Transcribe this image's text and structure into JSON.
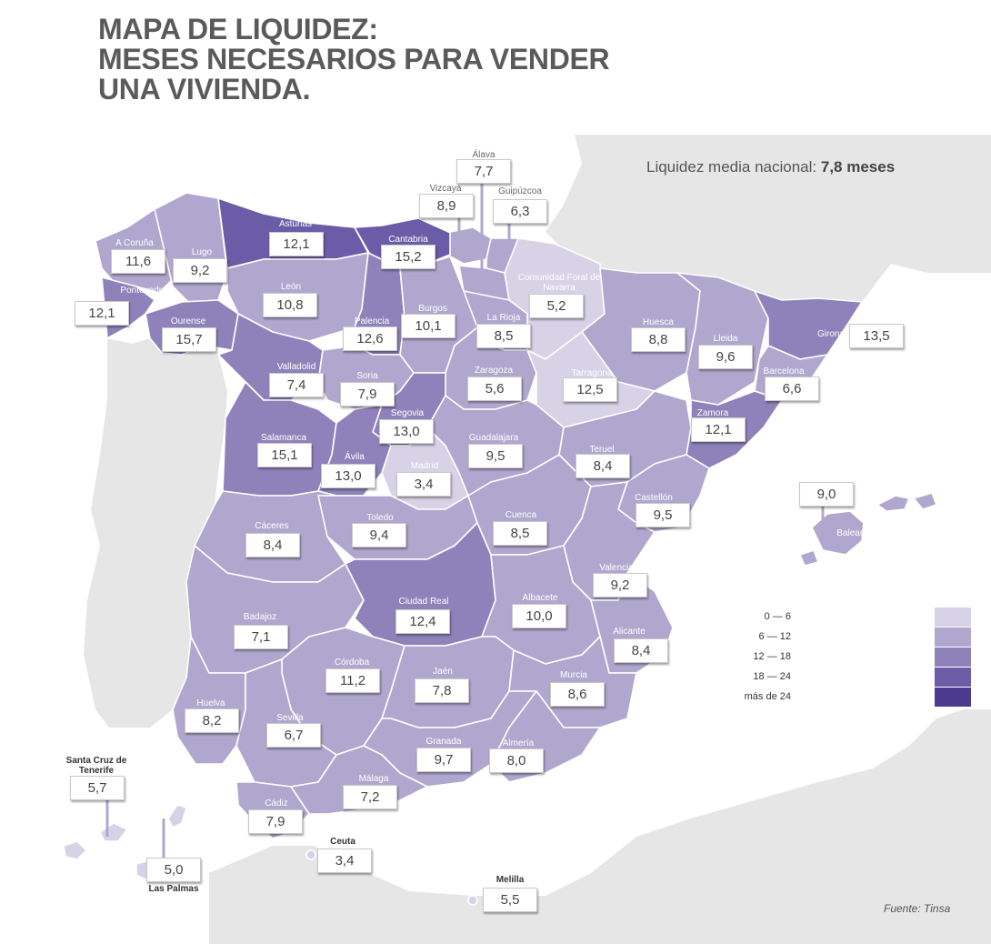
{
  "title": {
    "line1": "MAPA DE LIQUIDEZ:",
    "line2": "MESES NECESARIOS PARA VENDER",
    "line3": "UNA VIVIENDA."
  },
  "national": {
    "label": "Liquidez media nacional:",
    "value": "7,8 meses"
  },
  "source": "Fuente: Tinsa",
  "colors": {
    "c1": "#d7d2e6",
    "c2": "#b0a7cf",
    "c3": "#8f82bb",
    "c4": "#6b5ca8",
    "c5": "#4b3b8f",
    "neighbor_land": "#e6e6e6",
    "sea": "#ffffff",
    "text": "#444444"
  },
  "legend": [
    {
      "label": "0   — 6",
      "color": "#d7d2e6"
    },
    {
      "label": "6   — 12",
      "color": "#b0a7cf"
    },
    {
      "label": "12   — 18",
      "color": "#8f82bb"
    },
    {
      "label": "18   — 24",
      "color": "#6b5ca8"
    },
    {
      "label": "más de 24",
      "color": "#4b3b8f"
    }
  ],
  "provinces": [
    {
      "name": "A Coruña",
      "value": "11,6",
      "months": 11.6
    },
    {
      "name": "Lugo",
      "value": "9,2",
      "months": 9.2
    },
    {
      "name": "Asturias",
      "value": "12,1",
      "months": 12.1
    },
    {
      "name": "Cantabria",
      "value": "15,2",
      "months": 15.2
    },
    {
      "name": "Vizcaya",
      "value": "8,9",
      "months": 8.9
    },
    {
      "name": "Álava",
      "value": "7,7",
      "months": 7.7
    },
    {
      "name": "Guipúzcoa",
      "value": "6,3",
      "months": 6.3
    },
    {
      "name": "Comunidad Foral de Navarra",
      "value": "5,2",
      "months": 5.2
    },
    {
      "name": "Pontevedra",
      "value": "12,1",
      "months": 12.1
    },
    {
      "name": "Ourense",
      "value": "15,7",
      "months": 15.7
    },
    {
      "name": "León",
      "value": "10,8",
      "months": 10.8
    },
    {
      "name": "Palencia",
      "value": "12,6",
      "months": 12.6
    },
    {
      "name": "Burgos",
      "value": "10,1",
      "months": 10.1
    },
    {
      "name": "La Rioja",
      "value": "8,5",
      "months": 8.5
    },
    {
      "name": "Huesca",
      "value": "8,8",
      "months": 8.8
    },
    {
      "name": "Lleida",
      "value": "9,6",
      "months": 9.6
    },
    {
      "name": "Girona",
      "value": "13,5",
      "months": 13.5
    },
    {
      "name": "Barcelona",
      "value": "6,6",
      "months": 6.6
    },
    {
      "name": "Zamora",
      "value": "12,1",
      "months": 12.1
    },
    {
      "name": "Valladolid",
      "value": "7,4",
      "months": 7.4
    },
    {
      "name": "Soria",
      "value": "7,9",
      "months": 7.9
    },
    {
      "name": "Zaragoza",
      "value": "5,6",
      "months": 5.6
    },
    {
      "name": "Tarragona",
      "value": "12,5",
      "months": 12.5
    },
    {
      "name": "Segovia",
      "value": "13,0",
      "months": 13.0
    },
    {
      "name": "Salamanca",
      "value": "15,1",
      "months": 15.1
    },
    {
      "name": "Ávila",
      "value": "13,0",
      "months": 13.0
    },
    {
      "name": "Guadalajara",
      "value": "9,5",
      "months": 9.5
    },
    {
      "name": "Teruel",
      "value": "8,4",
      "months": 8.4
    },
    {
      "name": "Madrid",
      "value": "3,4",
      "months": 3.4
    },
    {
      "name": "Castellón",
      "value": "9,5",
      "months": 9.5
    },
    {
      "name": "Baleares",
      "value": "9,0",
      "months": 9.0
    },
    {
      "name": "Cáceres",
      "value": "8,4",
      "months": 8.4
    },
    {
      "name": "Toledo",
      "value": "9,4",
      "months": 9.4
    },
    {
      "name": "Cuenca",
      "value": "8,5",
      "months": 8.5
    },
    {
      "name": "Valencia",
      "value": "9,2",
      "months": 9.2
    },
    {
      "name": "Ciudad Real",
      "value": "12,4",
      "months": 12.4
    },
    {
      "name": "Albacete",
      "value": "10,0",
      "months": 10.0
    },
    {
      "name": "Badajoz",
      "value": "7,1",
      "months": 7.1
    },
    {
      "name": "Alicante",
      "value": "8,4",
      "months": 8.4
    },
    {
      "name": "Córdoba",
      "value": "11,2",
      "months": 11.2
    },
    {
      "name": "Jaén",
      "value": "7,8",
      "months": 7.8
    },
    {
      "name": "Murcia",
      "value": "8,6",
      "months": 8.6
    },
    {
      "name": "Huelva",
      "value": "8,2",
      "months": 8.2
    },
    {
      "name": "Sevilla",
      "value": "6,7",
      "months": 6.7
    },
    {
      "name": "Granada",
      "value": "9,7",
      "months": 9.7
    },
    {
      "name": "Almería",
      "value": "8,0",
      "months": 8.0
    },
    {
      "name": "Málaga",
      "value": "7,2",
      "months": 7.2
    },
    {
      "name": "Cádiz",
      "value": "7,9",
      "months": 7.9
    },
    {
      "name": "Santa Cruz de Tenerife",
      "value": "5,7",
      "months": 5.7
    },
    {
      "name": "Las Palmas",
      "value": "5,0",
      "months": 5.0
    },
    {
      "name": "Ceuta",
      "value": "3,4",
      "months": 3.4
    },
    {
      "name": "Melilla",
      "value": "5,5",
      "months": 5.5
    }
  ]
}
